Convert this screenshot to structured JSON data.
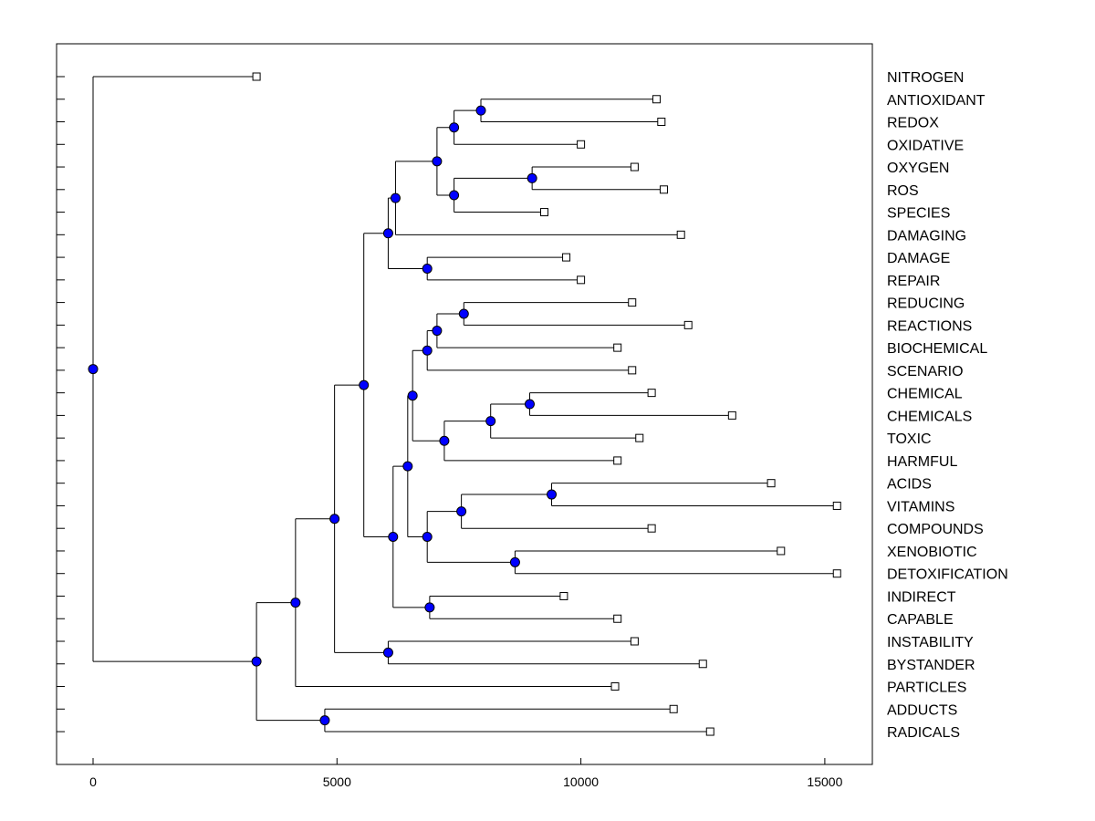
{
  "chart_data": {
    "type": "dendrogram",
    "title": "",
    "xlabel": "",
    "ylabel": "",
    "xlim": [
      -750,
      16000
    ],
    "x_ticks": [
      0,
      5000,
      10000,
      15000
    ],
    "x_tick_labels": [
      "0",
      "5000",
      "10000",
      "15000"
    ],
    "grid": false,
    "leaves": [
      {
        "label": "NITROGEN",
        "x": 3350
      },
      {
        "label": "ANTIOXIDANT",
        "x": 11550
      },
      {
        "label": "REDOX",
        "x": 11650
      },
      {
        "label": "OXIDATIVE",
        "x": 10000
      },
      {
        "label": "OXYGEN",
        "x": 11100
      },
      {
        "label": "ROS",
        "x": 11700
      },
      {
        "label": "SPECIES",
        "x": 9250
      },
      {
        "label": "DAMAGING",
        "x": 12050
      },
      {
        "label": "DAMAGE",
        "x": 9700
      },
      {
        "label": "REPAIR",
        "x": 10000
      },
      {
        "label": "REDUCING",
        "x": 11050
      },
      {
        "label": "REACTIONS",
        "x": 12200
      },
      {
        "label": "BIOCHEMICAL",
        "x": 10750
      },
      {
        "label": "SCENARIO",
        "x": 11050
      },
      {
        "label": "CHEMICAL",
        "x": 11450
      },
      {
        "label": "CHEMICALS",
        "x": 13100
      },
      {
        "label": "TOXIC",
        "x": 11200
      },
      {
        "label": "HARMFUL",
        "x": 10750
      },
      {
        "label": "ACIDS",
        "x": 13900
      },
      {
        "label": "VITAMINS",
        "x": 15250
      },
      {
        "label": "COMPOUNDS",
        "x": 11450
      },
      {
        "label": "XENOBIOTIC",
        "x": 14100
      },
      {
        "label": "DETOXIFICATION",
        "x": 15250
      },
      {
        "label": "INDIRECT",
        "x": 9650
      },
      {
        "label": "CAPABLE",
        "x": 10750
      },
      {
        "label": "INSTABILITY",
        "x": 11100
      },
      {
        "label": "BYSTANDER",
        "x": 12500
      },
      {
        "label": "PARTICLES",
        "x": 10700
      },
      {
        "label": "ADDUCTS",
        "x": 11900
      },
      {
        "label": "RADICALS",
        "x": 12650
      }
    ],
    "nodes": [
      {
        "id": "n1",
        "x": 0,
        "children": [
          "L0",
          "n2"
        ]
      },
      {
        "id": "n2",
        "x": 3350,
        "children": [
          "n3",
          "n29"
        ]
      },
      {
        "id": "n3",
        "x": 4150,
        "children": [
          "n4",
          "L27"
        ]
      },
      {
        "id": "n4",
        "x": 4950,
        "children": [
          "n5",
          "n28"
        ]
      },
      {
        "id": "n5",
        "x": 5550,
        "children": [
          "n6",
          "n14"
        ]
      },
      {
        "id": "n6",
        "x": 6050,
        "children": [
          "n7",
          "n13"
        ]
      },
      {
        "id": "n7",
        "x": 6200,
        "children": [
          "n8",
          "L7"
        ]
      },
      {
        "id": "n8",
        "x": 7050,
        "children": [
          "n9",
          "n11"
        ]
      },
      {
        "id": "n9",
        "x": 7400,
        "children": [
          "n10",
          "L3"
        ]
      },
      {
        "id": "n10",
        "x": 7950,
        "children": [
          "L1",
          "L2"
        ]
      },
      {
        "id": "n11",
        "x": 7400,
        "children": [
          "n12",
          "L6"
        ]
      },
      {
        "id": "n12",
        "x": 9000,
        "children": [
          "L4",
          "L5"
        ]
      },
      {
        "id": "n13",
        "x": 6850,
        "children": [
          "L8",
          "L9"
        ]
      },
      {
        "id": "n14",
        "x": 6150,
        "children": [
          "n15",
          "n27"
        ]
      },
      {
        "id": "n15",
        "x": 6450,
        "children": [
          "n16",
          "n23"
        ]
      },
      {
        "id": "n16",
        "x": 6550,
        "children": [
          "n17",
          "n20"
        ]
      },
      {
        "id": "n17",
        "x": 6850,
        "children": [
          "n18",
          "L13"
        ]
      },
      {
        "id": "n18",
        "x": 7050,
        "children": [
          "n19",
          "L12"
        ]
      },
      {
        "id": "n19",
        "x": 7600,
        "children": [
          "L10",
          "L11"
        ]
      },
      {
        "id": "n20",
        "x": 7200,
        "children": [
          "n21",
          "L17"
        ]
      },
      {
        "id": "n21",
        "x": 8150,
        "children": [
          "n22",
          "L16"
        ]
      },
      {
        "id": "n22",
        "x": 8950,
        "children": [
          "L14",
          "L15"
        ]
      },
      {
        "id": "n23",
        "x": 6850,
        "children": [
          "n24",
          "n26"
        ]
      },
      {
        "id": "n24",
        "x": 7550,
        "children": [
          "n25",
          "L20"
        ]
      },
      {
        "id": "n25",
        "x": 9400,
        "children": [
          "L18",
          "L19"
        ]
      },
      {
        "id": "n26",
        "x": 8650,
        "children": [
          "L21",
          "L22"
        ]
      },
      {
        "id": "n27",
        "x": 6900,
        "children": [
          "L23",
          "L24"
        ]
      },
      {
        "id": "n28",
        "x": 6050,
        "children": [
          "L25",
          "L26"
        ]
      },
      {
        "id": "n29",
        "x": 4750,
        "children": [
          "L28",
          "L29"
        ]
      }
    ],
    "colors": {
      "node_fill": "#0000ff",
      "leaf_fill": "#ffffff",
      "line": "#000000",
      "background": "#ffffff"
    }
  }
}
